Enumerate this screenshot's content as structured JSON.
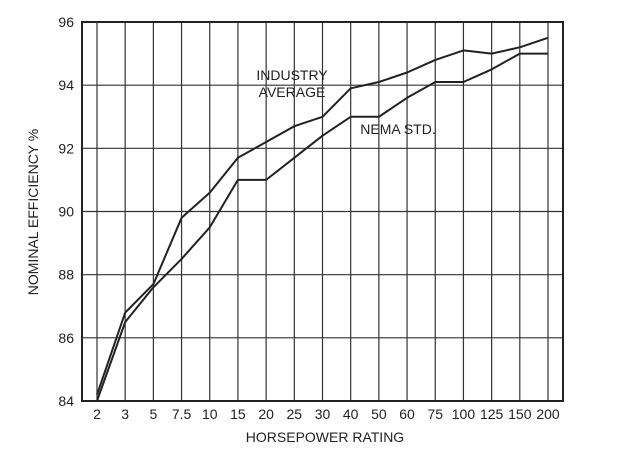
{
  "chart_data": {
    "type": "line",
    "title": "",
    "xlabel": "HORSEPOWER RATING",
    "ylabel": "NOMINAL EFFICIENCY %",
    "categories": [
      "2",
      "3",
      "5",
      "7.5",
      "10",
      "15",
      "20",
      "25",
      "30",
      "40",
      "50",
      "60",
      "75",
      "100",
      "125",
      "150",
      "200"
    ],
    "ylim": [
      84,
      96
    ],
    "yticks": [
      84,
      86,
      88,
      90,
      92,
      94,
      96
    ],
    "grid": true,
    "series": [
      {
        "name": "INDUSTRY AVERAGE",
        "label_lines": [
          "INDUSTRY",
          "AVERAGE"
        ],
        "values": [
          84.2,
          86.8,
          87.7,
          89.8,
          90.6,
          91.7,
          92.2,
          92.7,
          93.0,
          93.9,
          94.1,
          94.4,
          94.8,
          95.1,
          95.0,
          95.2,
          95.5
        ]
      },
      {
        "name": "NEMA STD.",
        "label_lines": [
          "NEMA STD."
        ],
        "values": [
          84.0,
          86.5,
          87.6,
          88.5,
          89.5,
          91.0,
          91.0,
          91.7,
          92.4,
          93.0,
          93.0,
          93.6,
          94.1,
          94.1,
          94.5,
          95.0,
          95.0
        ]
      }
    ],
    "colors": {
      "line": "#222222",
      "grid": "#333333",
      "frame": "#222222"
    }
  }
}
